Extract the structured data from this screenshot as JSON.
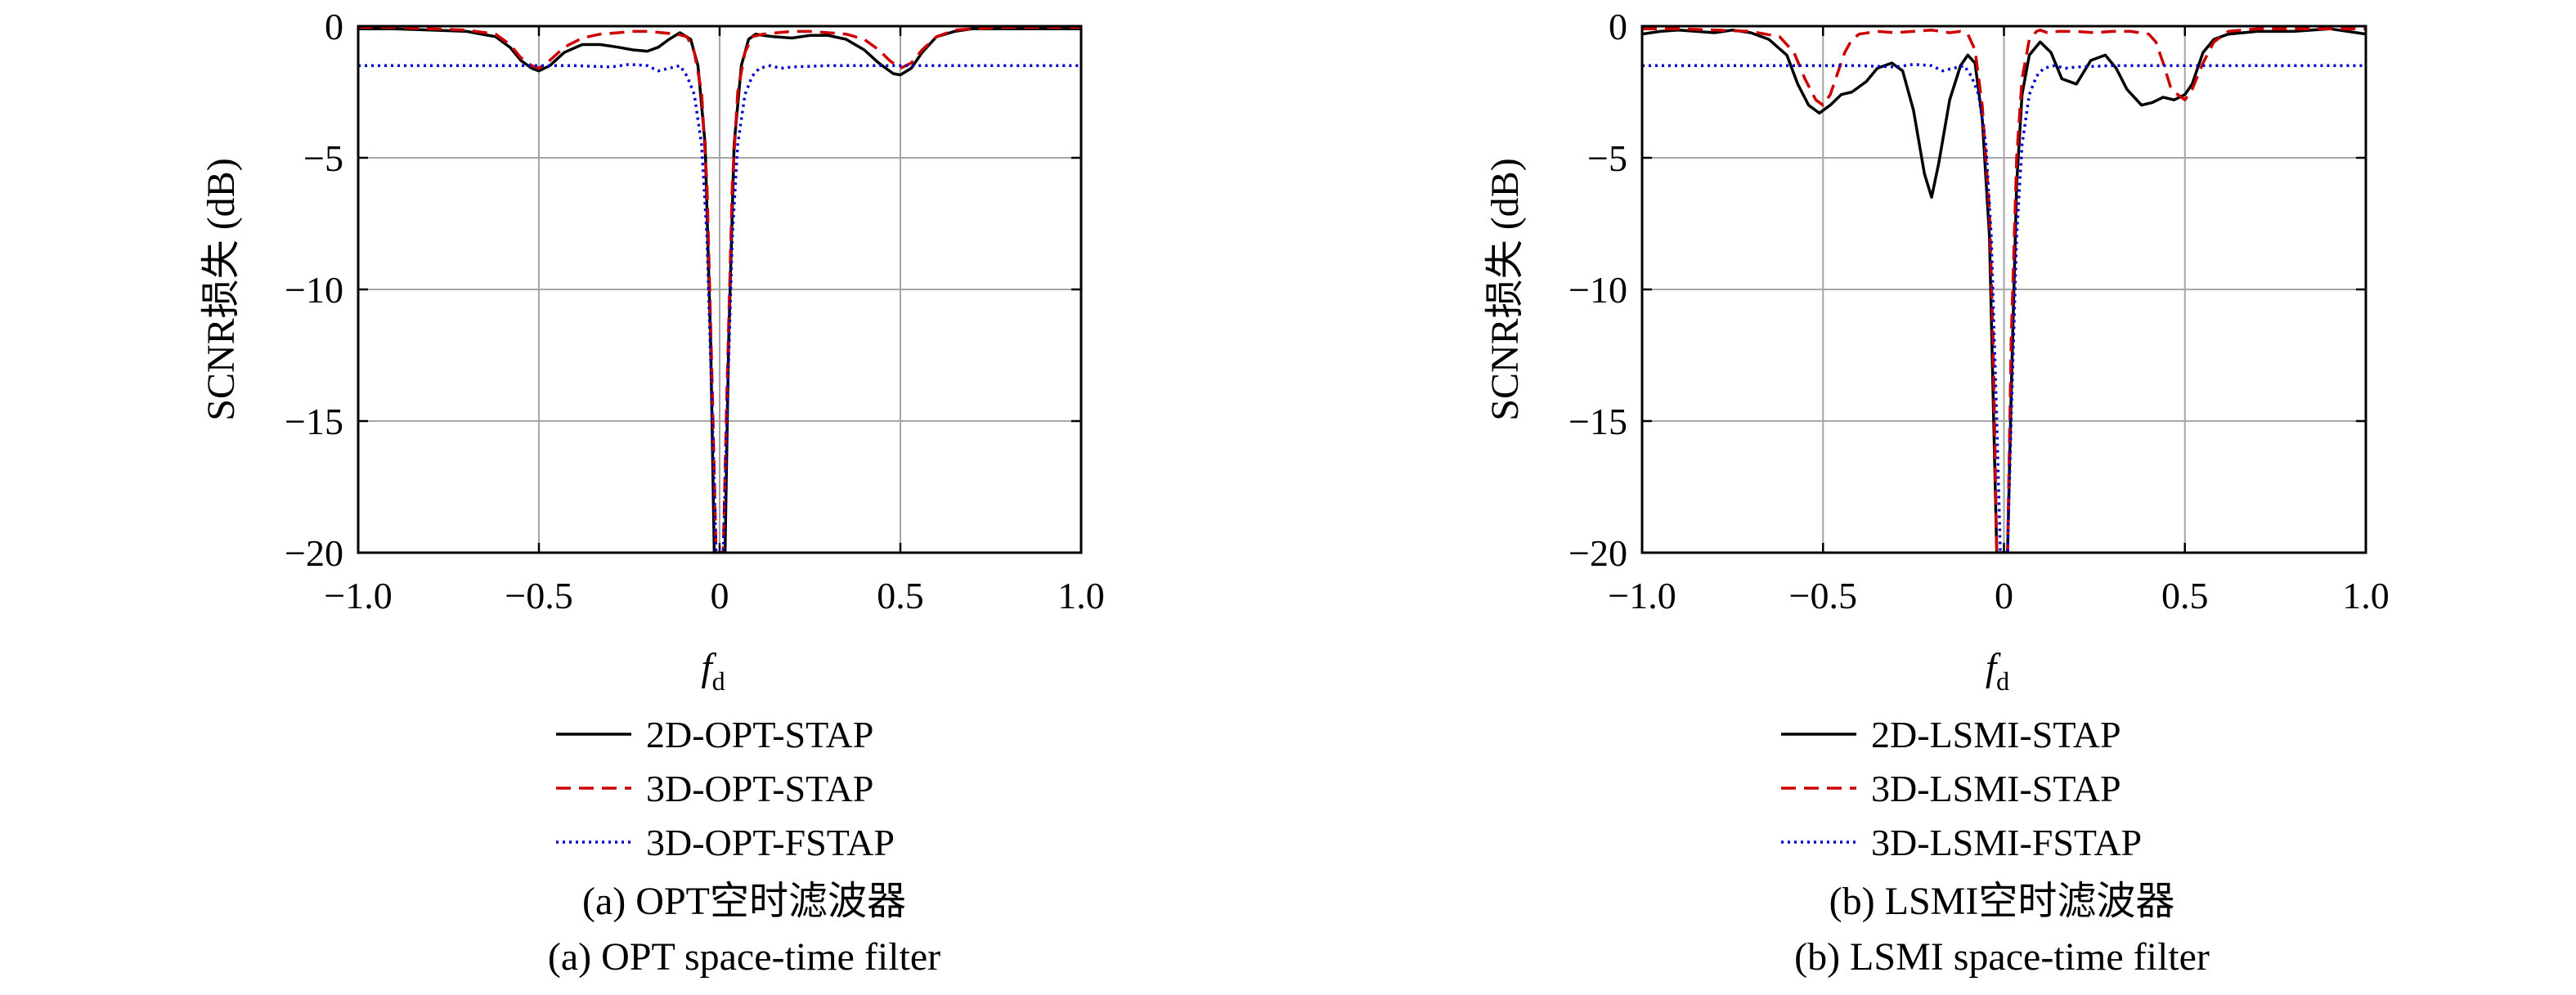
{
  "chart_data": [
    {
      "type": "line",
      "ylabel": "SCNR损失 (dB)",
      "xlabel_main": "f",
      "xlabel_sub": "d",
      "xlim": [
        -1.0,
        1.0
      ],
      "ylim": [
        -20,
        0
      ],
      "x_ticks": [
        -1.0,
        -0.5,
        0,
        0.5,
        1.0
      ],
      "x_tick_labels": [
        "−1.0",
        "−0.5",
        "0",
        "0.5",
        "1.0"
      ],
      "y_ticks": [
        0,
        -5,
        -10,
        -15,
        -20
      ],
      "y_tick_labels": [
        "0",
        "−5",
        "−10",
        "−15",
        "−20"
      ],
      "grid": true,
      "legend_position": "bottom",
      "caption_cn": "(a) OPT空时滤波器",
      "caption_en": "(a) OPT space-time filter",
      "series": [
        {
          "name": "2D-OPT-STAP",
          "color": "#000000",
          "dash": "solid",
          "x": [
            -1.0,
            -0.9,
            -0.8,
            -0.7,
            -0.62,
            -0.58,
            -0.55,
            -0.52,
            -0.5,
            -0.47,
            -0.43,
            -0.38,
            -0.33,
            -0.28,
            -0.24,
            -0.2,
            -0.17,
            -0.14,
            -0.11,
            -0.08,
            -0.06,
            -0.04,
            -0.025,
            -0.015,
            0,
            0.015,
            0.025,
            0.04,
            0.06,
            0.08,
            0.1,
            0.12,
            0.15,
            0.2,
            0.25,
            0.3,
            0.35,
            0.4,
            0.44,
            0.48,
            0.5,
            0.53,
            0.56,
            0.6,
            0.65,
            0.7,
            0.8,
            0.9,
            1.0
          ],
          "y": [
            -0.1,
            -0.1,
            -0.15,
            -0.2,
            -0.4,
            -0.8,
            -1.3,
            -1.6,
            -1.7,
            -1.5,
            -1.0,
            -0.7,
            -0.7,
            -0.8,
            -0.9,
            -0.95,
            -0.8,
            -0.5,
            -0.25,
            -0.5,
            -1.5,
            -4.5,
            -12,
            -20,
            -20,
            -20,
            -12,
            -4.5,
            -1.5,
            -0.5,
            -0.3,
            -0.35,
            -0.4,
            -0.45,
            -0.35,
            -0.35,
            -0.5,
            -0.9,
            -1.4,
            -1.8,
            -1.85,
            -1.6,
            -1.0,
            -0.4,
            -0.2,
            -0.1,
            -0.1,
            -0.1,
            -0.1
          ]
        },
        {
          "name": "3D-OPT-STAP",
          "color": "#cc0000",
          "dash": "dashed",
          "x": [
            -1.0,
            -0.9,
            -0.8,
            -0.7,
            -0.62,
            -0.58,
            -0.55,
            -0.52,
            -0.5,
            -0.47,
            -0.43,
            -0.38,
            -0.33,
            -0.28,
            -0.24,
            -0.2,
            -0.16,
            -0.12,
            -0.09,
            -0.07,
            -0.05,
            -0.035,
            -0.02,
            -0.01,
            0,
            0.01,
            0.02,
            0.035,
            0.05,
            0.07,
            0.09,
            0.12,
            0.16,
            0.2,
            0.25,
            0.3,
            0.35,
            0.4,
            0.44,
            0.47,
            0.5,
            0.53,
            0.56,
            0.6,
            0.65,
            0.7,
            0.8,
            0.9,
            1.0
          ],
          "y": [
            -0.05,
            -0.05,
            -0.1,
            -0.15,
            -0.3,
            -0.7,
            -1.2,
            -1.5,
            -1.6,
            -1.3,
            -0.8,
            -0.45,
            -0.3,
            -0.25,
            -0.2,
            -0.2,
            -0.25,
            -0.3,
            -0.4,
            -1.0,
            -2.5,
            -6,
            -14,
            -20,
            -20,
            -20,
            -14,
            -6,
            -2.5,
            -1.0,
            -0.4,
            -0.3,
            -0.25,
            -0.2,
            -0.2,
            -0.25,
            -0.3,
            -0.5,
            -0.9,
            -1.3,
            -1.6,
            -1.4,
            -0.9,
            -0.4,
            -0.15,
            -0.1,
            -0.05,
            -0.05,
            -0.05
          ]
        },
        {
          "name": "3D-OPT-FSTAP",
          "color": "#0000cc",
          "dash": "dotted",
          "x": [
            -1.0,
            -0.8,
            -0.6,
            -0.4,
            -0.3,
            -0.25,
            -0.2,
            -0.17,
            -0.14,
            -0.11,
            -0.09,
            -0.07,
            -0.05,
            -0.035,
            -0.02,
            -0.01,
            0,
            0.01,
            0.02,
            0.035,
            0.05,
            0.07,
            0.09,
            0.11,
            0.14,
            0.17,
            0.2,
            0.3,
            0.4,
            0.6,
            0.8,
            1.0
          ],
          "y": [
            -1.5,
            -1.5,
            -1.5,
            -1.5,
            -1.55,
            -1.45,
            -1.5,
            -1.7,
            -1.6,
            -1.5,
            -1.9,
            -2.6,
            -4.5,
            -8,
            -15,
            -20,
            -20,
            -20,
            -15,
            -8,
            -4.5,
            -2.6,
            -1.9,
            -1.6,
            -1.5,
            -1.6,
            -1.55,
            -1.5,
            -1.5,
            -1.5,
            -1.5,
            -1.5
          ]
        }
      ]
    },
    {
      "type": "line",
      "ylabel": "SCNR损失 (dB)",
      "xlabel_main": "f",
      "xlabel_sub": "d",
      "xlim": [
        -1.0,
        1.0
      ],
      "ylim": [
        -20,
        0
      ],
      "x_ticks": [
        -1.0,
        -0.5,
        0,
        0.5,
        1.0
      ],
      "x_tick_labels": [
        "−1.0",
        "−0.5",
        "0",
        "0.5",
        "1.0"
      ],
      "y_ticks": [
        0,
        -5,
        -10,
        -15,
        -20
      ],
      "y_tick_labels": [
        "0",
        "−5",
        "−10",
        "−15",
        "−20"
      ],
      "grid": true,
      "legend_position": "bottom",
      "caption_cn": "(b) LSMI空时滤波器",
      "caption_en": "(b) LSMI space-time filter",
      "series": [
        {
          "name": "2D-LSMI-STAP",
          "color": "#000000",
          "dash": "solid",
          "x": [
            -1.0,
            -0.95,
            -0.9,
            -0.85,
            -0.8,
            -0.75,
            -0.7,
            -0.65,
            -0.6,
            -0.57,
            -0.54,
            -0.51,
            -0.48,
            -0.45,
            -0.42,
            -0.38,
            -0.35,
            -0.31,
            -0.28,
            -0.25,
            -0.22,
            -0.2,
            -0.18,
            -0.15,
            -0.12,
            -0.1,
            -0.08,
            -0.06,
            -0.04,
            -0.03,
            -0.02,
            -0.01,
            0,
            0.01,
            0.02,
            0.035,
            0.05,
            0.07,
            0.1,
            0.13,
            0.16,
            0.2,
            0.24,
            0.28,
            0.31,
            0.34,
            0.38,
            0.41,
            0.44,
            0.47,
            0.5,
            0.52,
            0.55,
            0.58,
            0.62,
            0.7,
            0.8,
            0.9,
            1.0
          ],
          "y": [
            -0.3,
            -0.2,
            -0.15,
            -0.2,
            -0.25,
            -0.15,
            -0.25,
            -0.5,
            -1.1,
            -2.2,
            -3.0,
            -3.3,
            -3.0,
            -2.6,
            -2.5,
            -2.1,
            -1.6,
            -1.4,
            -1.7,
            -3.2,
            -5.6,
            -6.5,
            -5.2,
            -2.8,
            -1.5,
            -1.1,
            -1.4,
            -3.5,
            -8,
            -14,
            -20,
            -20,
            -20,
            -20,
            -14,
            -6,
            -2.6,
            -1.1,
            -0.6,
            -1.0,
            -2.0,
            -2.2,
            -1.3,
            -1.1,
            -1.6,
            -2.4,
            -3.0,
            -2.9,
            -2.7,
            -2.8,
            -2.6,
            -2.2,
            -1.0,
            -0.5,
            -0.3,
            -0.2,
            -0.2,
            -0.1,
            -0.3
          ]
        },
        {
          "name": "3D-LSMI-STAP",
          "color": "#cc0000",
          "dash": "dashed",
          "x": [
            -1.0,
            -0.9,
            -0.8,
            -0.7,
            -0.62,
            -0.58,
            -0.55,
            -0.52,
            -0.5,
            -0.48,
            -0.46,
            -0.44,
            -0.42,
            -0.4,
            -0.35,
            -0.3,
            -0.25,
            -0.2,
            -0.15,
            -0.12,
            -0.1,
            -0.08,
            -0.06,
            -0.04,
            -0.03,
            -0.02,
            -0.01,
            0,
            0.01,
            0.02,
            0.035,
            0.05,
            0.07,
            0.09,
            0.1,
            0.12,
            0.15,
            0.2,
            0.25,
            0.3,
            0.35,
            0.4,
            0.42,
            0.44,
            0.46,
            0.48,
            0.5,
            0.52,
            0.55,
            0.58,
            0.62,
            0.7,
            0.8,
            0.9,
            1.0
          ],
          "y": [
            -0.1,
            -0.1,
            -0.15,
            -0.2,
            -0.4,
            -1.0,
            -2.0,
            -2.8,
            -3.0,
            -2.6,
            -1.8,
            -1.0,
            -0.5,
            -0.3,
            -0.2,
            -0.25,
            -0.2,
            -0.15,
            -0.25,
            -0.2,
            -0.3,
            -0.9,
            -3.0,
            -7,
            -12,
            -20,
            -20,
            -20,
            -20,
            -12,
            -5,
            -2.0,
            -0.5,
            -0.2,
            -0.15,
            -0.25,
            -0.2,
            -0.2,
            -0.25,
            -0.2,
            -0.2,
            -0.3,
            -0.6,
            -1.4,
            -2.3,
            -2.6,
            -2.8,
            -2.4,
            -1.4,
            -0.6,
            -0.2,
            -0.1,
            -0.1,
            -0.1,
            -0.1
          ]
        },
        {
          "name": "3D-LSMI-FSTAP",
          "color": "#0000cc",
          "dash": "dotted",
          "x": [
            -1.0,
            -0.8,
            -0.6,
            -0.4,
            -0.3,
            -0.25,
            -0.2,
            -0.17,
            -0.14,
            -0.11,
            -0.09,
            -0.07,
            -0.05,
            -0.035,
            -0.02,
            -0.01,
            0,
            0.01,
            0.02,
            0.035,
            0.05,
            0.07,
            0.09,
            0.11,
            0.14,
            0.17,
            0.2,
            0.3,
            0.4,
            0.6,
            0.8,
            1.0
          ],
          "y": [
            -1.5,
            -1.5,
            -1.5,
            -1.5,
            -1.55,
            -1.45,
            -1.5,
            -1.7,
            -1.6,
            -1.5,
            -1.9,
            -2.6,
            -4.5,
            -8,
            -15,
            -20,
            -20,
            -20,
            -15,
            -8,
            -4.5,
            -2.6,
            -1.9,
            -1.6,
            -1.5,
            -1.6,
            -1.55,
            -1.5,
            -1.5,
            -1.5,
            -1.5,
            -1.5
          ]
        }
      ]
    }
  ]
}
